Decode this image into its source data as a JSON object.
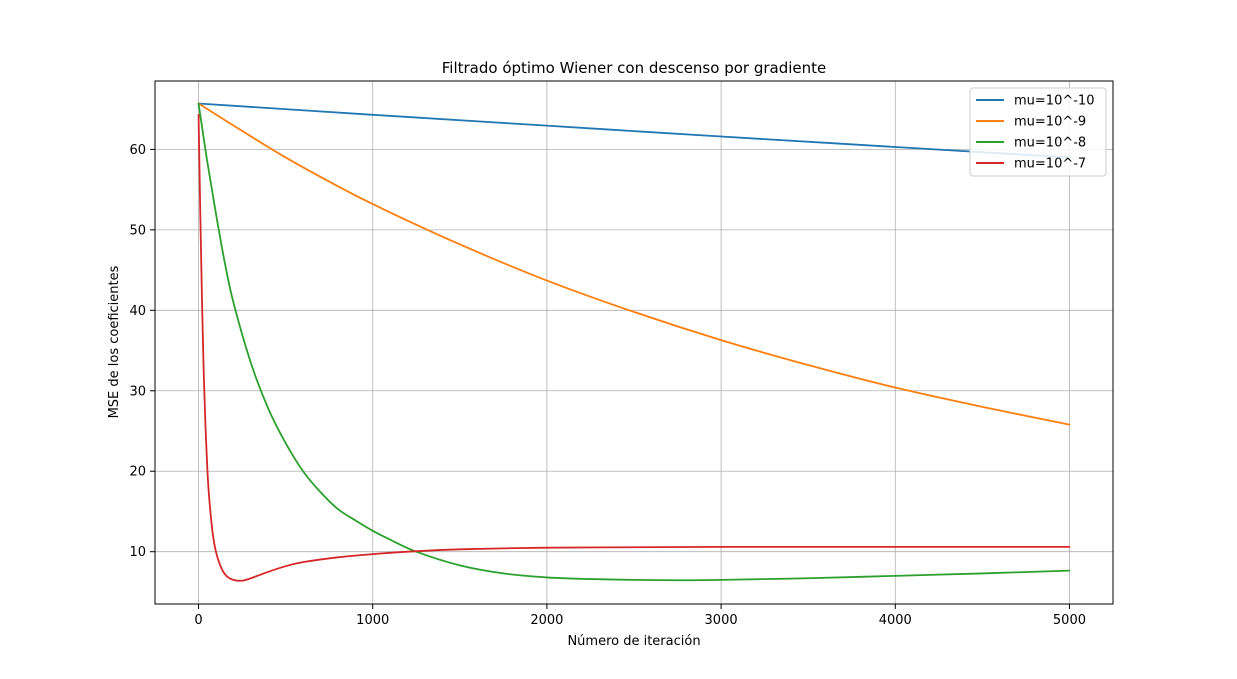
{
  "chart_data": {
    "type": "line",
    "title": "Filtrado óptimo Wiener con descenso por gradiente",
    "xlabel": "Número de iteración",
    "ylabel": "MSE de los coeficientes",
    "xlim": [
      -250,
      5250
    ],
    "ylim": [
      3.5,
      68.5
    ],
    "xticks": [
      0,
      1000,
      2000,
      3000,
      4000,
      5000
    ],
    "yticks": [
      10,
      20,
      30,
      40,
      50,
      60
    ],
    "grid": true,
    "legend_position": "top-right",
    "series": [
      {
        "name": "mu=10^-10",
        "color": "#1f77b4",
        "x": [
          0,
          1000,
          2000,
          3000,
          4000,
          5000
        ],
        "y": [
          65.7,
          64.3,
          62.95,
          61.6,
          60.3,
          59.0
        ]
      },
      {
        "name": "mu=10^-9",
        "color": "#ff7f0e",
        "x": [
          0,
          250,
          500,
          750,
          1000,
          1500,
          2000,
          2500,
          3000,
          3500,
          4000,
          4500,
          5000
        ],
        "y": [
          65.7,
          62.3,
          59.0,
          56.0,
          53.2,
          48.2,
          43.7,
          39.8,
          36.3,
          33.2,
          30.4,
          28.0,
          25.8
        ]
      },
      {
        "name": "mu=10^-8",
        "color": "#2ca02c",
        "x": [
          0,
          50,
          100,
          150,
          200,
          300,
          400,
          500,
          600,
          700,
          800,
          900,
          1000,
          1100,
          1250,
          1500,
          1750,
          2000,
          2250,
          2500,
          2750,
          3000,
          3500,
          4000,
          4500,
          5000
        ],
        "y": [
          65.7,
          58.5,
          52.0,
          46.0,
          41.0,
          33.5,
          27.8,
          23.5,
          20.0,
          17.4,
          15.3,
          13.9,
          12.6,
          11.5,
          10.0,
          8.3,
          7.3,
          6.8,
          6.6,
          6.5,
          6.45,
          6.5,
          6.7,
          7.0,
          7.3,
          7.65
        ]
      },
      {
        "name": "mu=10^-7",
        "color": "#d62728",
        "x": [
          0,
          10,
          20,
          30,
          40,
          50,
          60,
          80,
          100,
          130,
          160,
          200,
          250,
          300,
          400,
          500,
          600,
          800,
          1000,
          1200,
          1500,
          2000,
          2500,
          3000,
          4000,
          5000
        ],
        "y": [
          64.3,
          52.0,
          41.0,
          32.0,
          25.5,
          20.5,
          17.0,
          12.5,
          10.0,
          8.0,
          7.0,
          6.5,
          6.4,
          6.7,
          7.5,
          8.2,
          8.7,
          9.3,
          9.7,
          10.0,
          10.3,
          10.5,
          10.55,
          10.6,
          10.6,
          10.6
        ]
      }
    ]
  }
}
